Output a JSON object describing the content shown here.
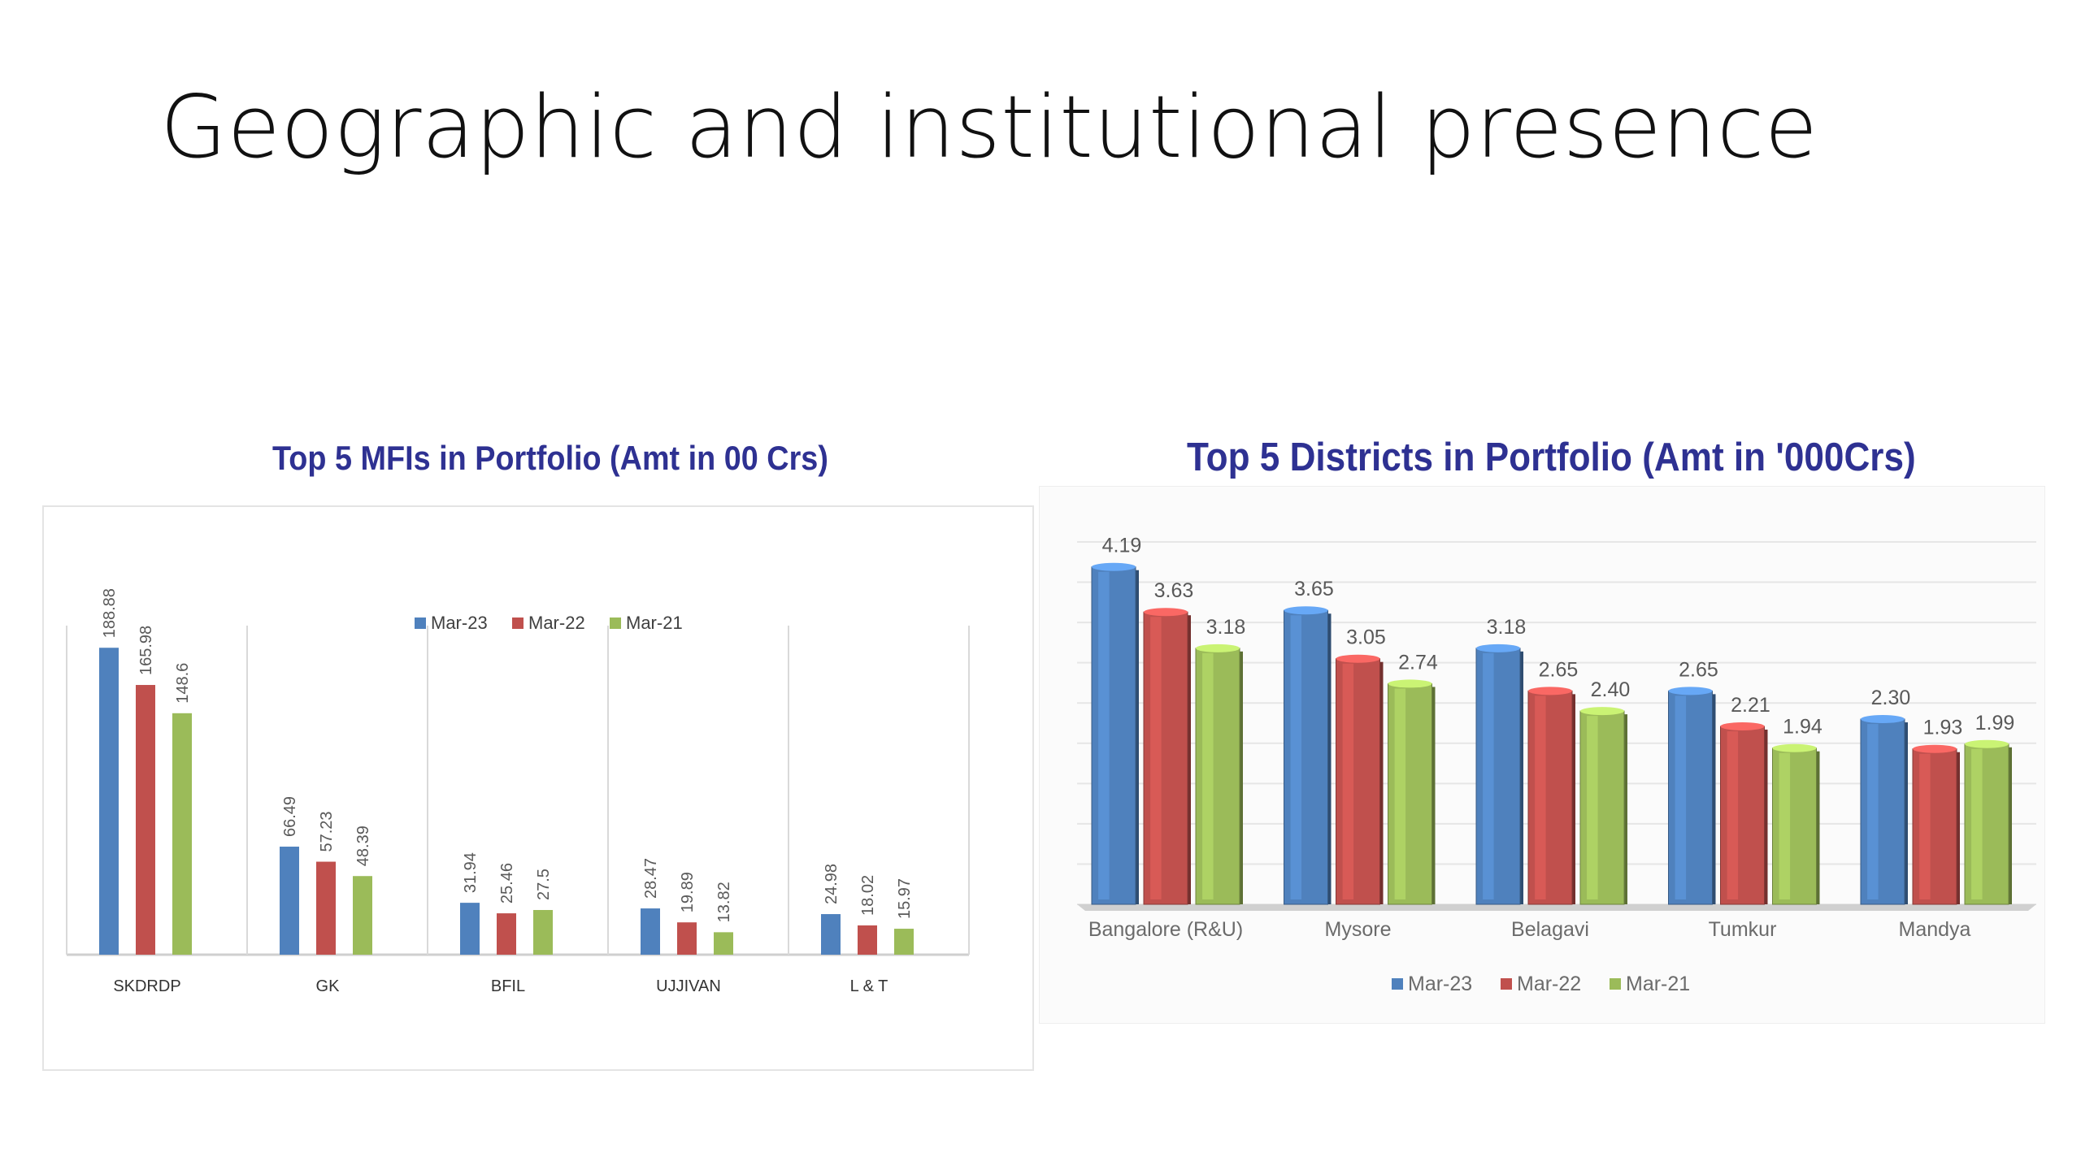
{
  "slide": {
    "title": "Geographic and institutional presence"
  },
  "colors": {
    "mar23": "#4f81bd",
    "mar22": "#c0504d",
    "mar21": "#9bbb59",
    "title": "#2e3192"
  },
  "chart_data": [
    {
      "type": "bar",
      "title": "Top 5 MFIs in Portfolio (Amt in 00 Crs)",
      "categories": [
        "SKDRDP",
        "GK",
        "BFIL",
        "UJJIVAN",
        "L & T"
      ],
      "series": [
        {
          "name": "Mar-23",
          "values": [
            188.88,
            66.49,
            31.94,
            28.47,
            24.98
          ],
          "labels": [
            "188.88",
            "66.49",
            "31.94",
            "28.47",
            "24.98"
          ]
        },
        {
          "name": "Mar-22",
          "values": [
            165.98,
            57.23,
            25.46,
            19.89,
            18.02
          ],
          "labels": [
            "165.98",
            "57.23",
            "25.46",
            "19.89",
            "18.02"
          ]
        },
        {
          "name": "Mar-21",
          "values": [
            148.6,
            48.39,
            27.5,
            13.82,
            15.97
          ],
          "labels": [
            "148.6",
            "48.39",
            "27.5",
            "13.82",
            "15.97"
          ]
        }
      ],
      "ylim": [
        0,
        200
      ],
      "legend_position": "top",
      "grid": false
    },
    {
      "type": "bar",
      "title": "Top 5 Districts in Portfolio (Amt in '000Crs)",
      "categories": [
        "Bangalore (R&U)",
        "Mysore",
        "Belagavi",
        "Tumkur",
        "Mandya"
      ],
      "series": [
        {
          "name": "Mar-23",
          "values": [
            4.19,
            3.65,
            3.18,
            2.65,
            2.3
          ],
          "labels": [
            "4.19",
            "3.65",
            "3.18",
            "2.65",
            "2.30"
          ]
        },
        {
          "name": "Mar-22",
          "values": [
            3.63,
            3.05,
            2.65,
            2.21,
            1.93
          ],
          "labels": [
            "3.63",
            "3.05",
            "2.65",
            "2.21",
            "1.93"
          ]
        },
        {
          "name": "Mar-21",
          "values": [
            3.18,
            2.74,
            2.4,
            1.94,
            1.99
          ],
          "labels": [
            "3.18",
            "2.74",
            "2.40",
            "1.94",
            "1.99"
          ]
        }
      ],
      "ylim": [
        0,
        4.5
      ],
      "legend_position": "bottom",
      "grid": true
    }
  ]
}
